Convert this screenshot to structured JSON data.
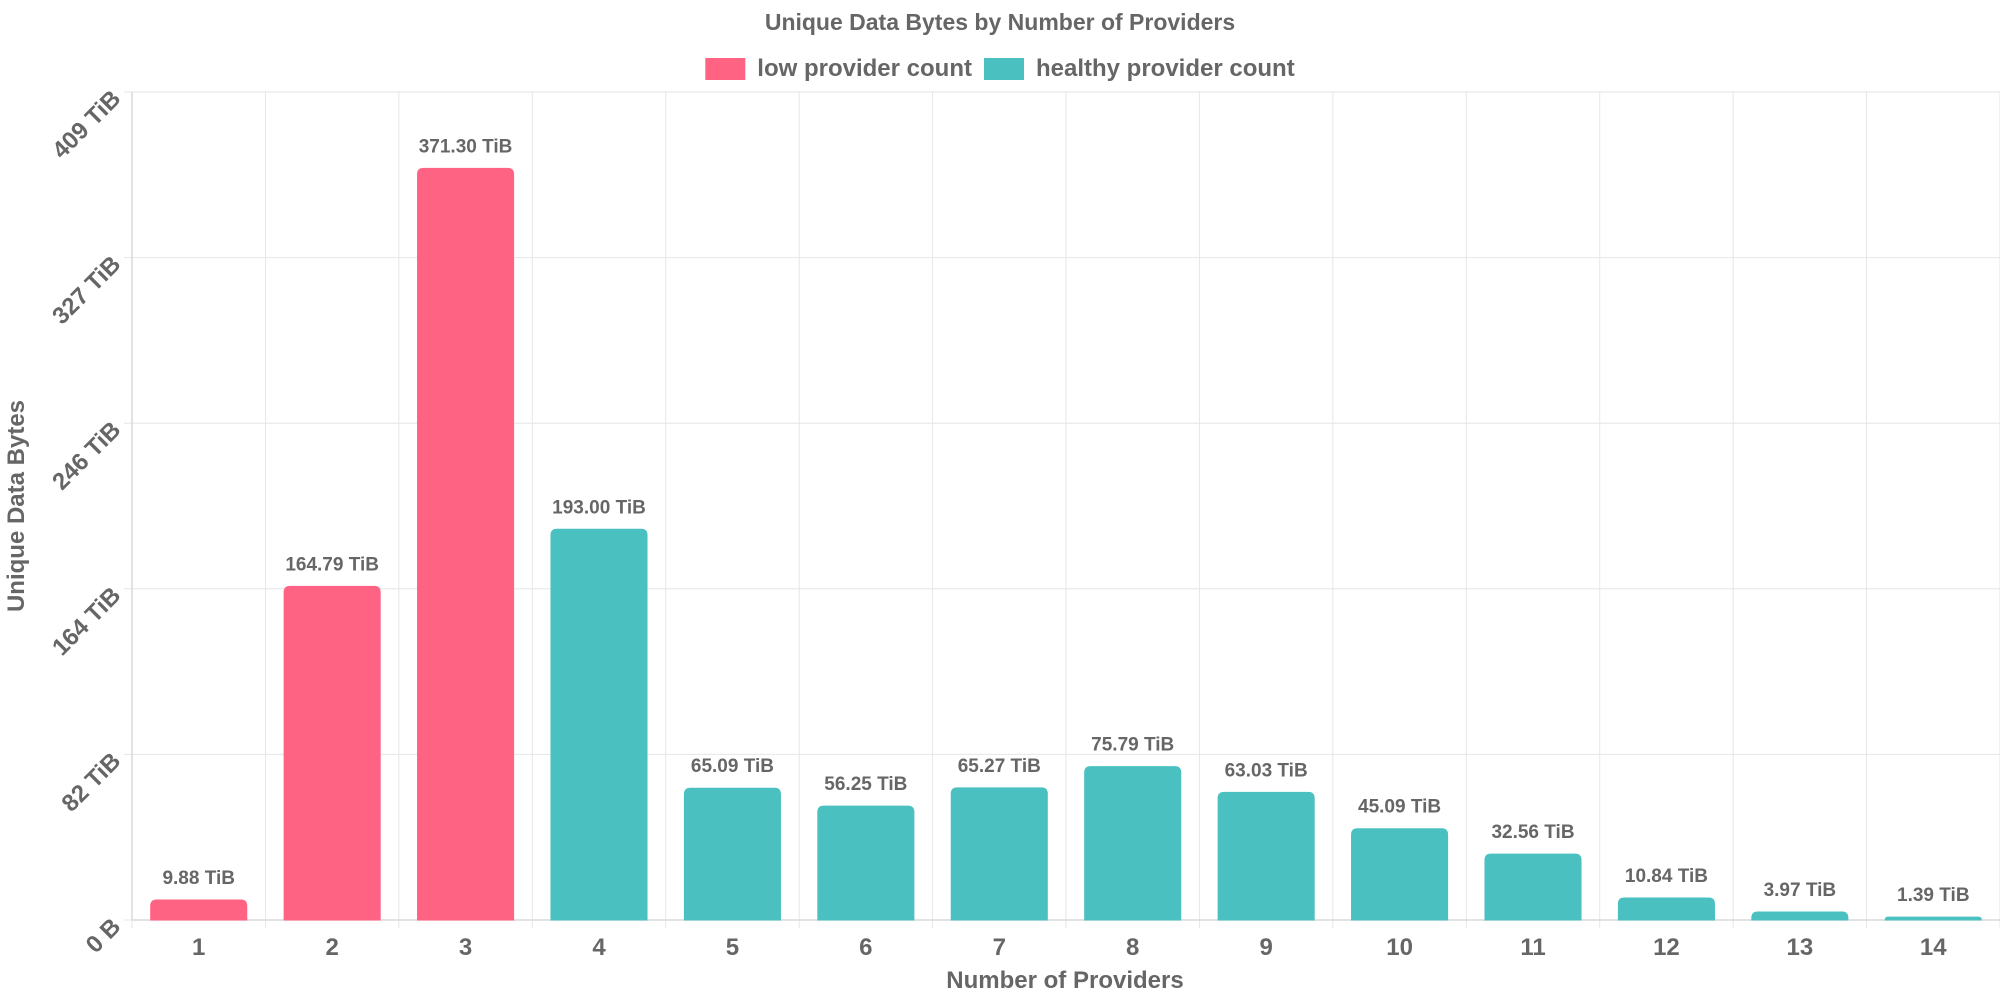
{
  "chart_data": {
    "type": "bar",
    "title": "Unique Data Bytes by Number of Providers",
    "xlabel": "Number of Providers",
    "ylabel": "Unique Data Bytes",
    "categories": [
      "1",
      "2",
      "3",
      "4",
      "5",
      "6",
      "7",
      "8",
      "9",
      "10",
      "11",
      "12",
      "13",
      "14"
    ],
    "values": [
      9.88,
      164.79,
      371.3,
      193.0,
      65.09,
      56.25,
      65.27,
      75.79,
      63.03,
      45.09,
      32.56,
      10.84,
      3.97,
      1.39
    ],
    "value_labels": [
      "9.88 TiB",
      "164.79 TiB",
      "371.30 TiB",
      "193.00 TiB",
      "65.09 TiB",
      "56.25 TiB",
      "65.27 TiB",
      "75.79 TiB",
      "63.03 TiB",
      "45.09 TiB",
      "32.56 TiB",
      "10.84 TiB",
      "3.97 TiB",
      "1.39 TiB"
    ],
    "series_assignment": [
      "low",
      "low",
      "low",
      "healthy",
      "healthy",
      "healthy",
      "healthy",
      "healthy",
      "healthy",
      "healthy",
      "healthy",
      "healthy",
      "healthy",
      "healthy"
    ],
    "series": [
      {
        "key": "low",
        "name": "low provider count",
        "color": "#ff6384"
      },
      {
        "key": "healthy",
        "name": "healthy provider count",
        "color": "#4bc0c0"
      }
    ],
    "yticks": [
      {
        "value": 0,
        "label": "0 B"
      },
      {
        "value": 81.8,
        "label": "82 TiB"
      },
      {
        "value": 163.6,
        "label": "164 TiB"
      },
      {
        "value": 245.4,
        "label": "246 TiB"
      },
      {
        "value": 327.2,
        "label": "327 TiB"
      },
      {
        "value": 409,
        "label": "409 TiB"
      }
    ],
    "ylim": [
      0,
      409
    ],
    "unit": "TiB",
    "grid": true,
    "legend_position": "top"
  }
}
